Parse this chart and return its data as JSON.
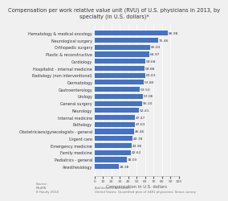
{
  "title": "Compensation per work relative value unit (RVU) of U.S. physicians in 2013, by\nspecialty (in U.S. dollars)*",
  "categories": [
    "Hematology & medical oncology",
    "Neurological surgery",
    "Orthopedic surgery",
    "Plastic & reconstructive",
    "Cardiology",
    "Hospitalist - internal medicine",
    "Radiology (non interventional)",
    "Dermatology",
    "Gastroenterology",
    "Urology",
    "General surgery",
    "Neurology",
    "Internal medicine",
    "Pathology",
    "Obstetricians/gynecologists - general",
    "Urgent care",
    "Emergency medicine",
    "Family medicine",
    "Pediatrics - general",
    "Anesthesiology"
  ],
  "values": [
    86.98,
    75.46,
    66.03,
    64.97,
    59.68,
    58.88,
    60.03,
    57.8,
    53.53,
    57.06,
    56.1,
    52.41,
    47.47,
    47.63,
    46.46,
    44.78,
    43.96,
    42.62,
    38.03,
    28.38
  ],
  "bar_color": "#4472c4",
  "xlabel": "Compensation in U.S. dollars",
  "xlim": [
    0,
    100
  ],
  "xticks": [
    0,
    10,
    20,
    30,
    40,
    50,
    60,
    70,
    80,
    90,
    100
  ],
  "source_text": "Source:\nMedPA\n8 Hourly 2014",
  "additional_text": "Additional information:\nUnited States; Quantified plan of 3481 physicians; Senos survey",
  "title_fontsize": 4.8,
  "label_fontsize": 3.5,
  "value_fontsize": 3.2,
  "xlabel_fontsize": 3.8,
  "tick_fontsize": 3.2,
  "background_color": "#f0f0f0"
}
